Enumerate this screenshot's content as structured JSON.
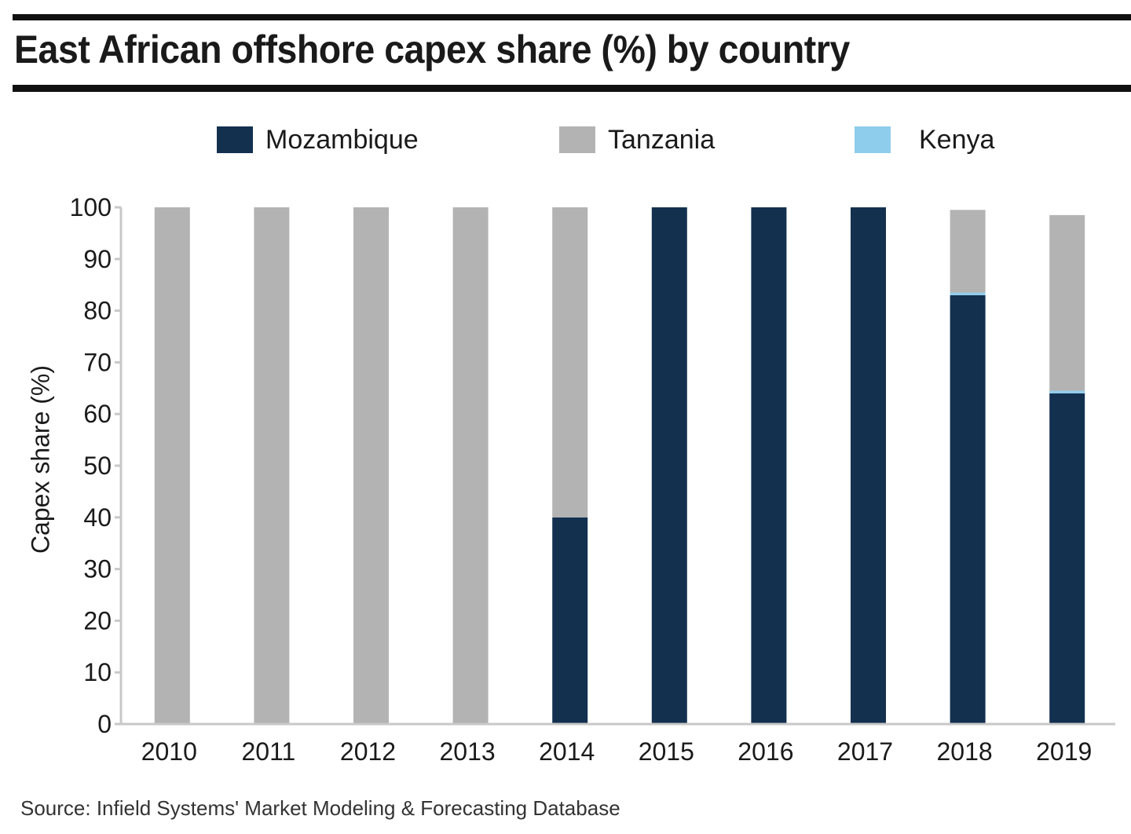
{
  "title": "East African offshore capex share (%) by country",
  "source": "Source: Infield Systems' Market Modeling & Forecasting Database",
  "colors": {
    "Mozambique": "#13304f",
    "Tanzania": "#b3b3b3",
    "Kenya": "#8fcdec"
  },
  "chart_data": {
    "type": "bar",
    "stacked": true,
    "title": "East African offshore capex share (%) by country",
    "xlabel": "",
    "ylabel": "Capex share (%)",
    "ylim": [
      0,
      100
    ],
    "yticks": [
      "0",
      "10",
      "20",
      "30",
      "40",
      "50",
      "60",
      "70",
      "80",
      "90",
      "100"
    ],
    "categories": [
      "2010",
      "2011",
      "2012",
      "2013",
      "2014",
      "2015",
      "2016",
      "2017",
      "2018",
      "2019"
    ],
    "series": [
      {
        "name": "Mozambique",
        "values": [
          0,
          0,
          0,
          0,
          40,
          100,
          100,
          100,
          83,
          64
        ]
      },
      {
        "name": "Kenya",
        "values": [
          0,
          0,
          0,
          0,
          0,
          0,
          0,
          0,
          0.5,
          0.5
        ]
      },
      {
        "name": "Tanzania",
        "values": [
          100,
          100,
          100,
          100,
          60,
          0,
          0,
          0,
          16,
          34
        ]
      }
    ],
    "legend": [
      "Mozambique",
      "Tanzania",
      "Kenya"
    ],
    "legend_position": "top",
    "grid": false
  }
}
